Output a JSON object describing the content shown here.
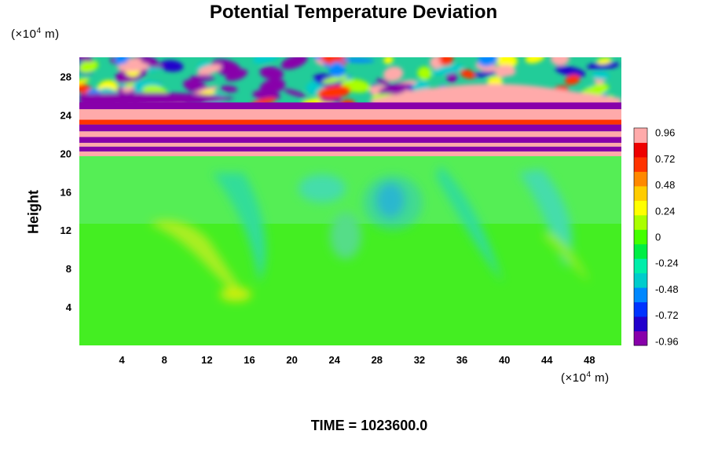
{
  "chart_data": {
    "type": "heatmap",
    "title": "Potential Temperature Deviation",
    "ylabel": "Height",
    "xlabel": "",
    "x_unit": {
      "prefix": "(×10",
      "exp": "4",
      "suffix": " m)"
    },
    "y_unit": {
      "prefix": "(×10",
      "exp": "4",
      "suffix": " m)"
    },
    "xlim": [
      0,
      51
    ],
    "ylim": [
      0,
      30
    ],
    "x_ticks": [
      "4",
      "8",
      "12",
      "16",
      "20",
      "24",
      "28",
      "32",
      "36",
      "40",
      "44",
      "48"
    ],
    "y_ticks": [
      "4",
      "8",
      "12",
      "16",
      "20",
      "24",
      "28"
    ],
    "colorbar": {
      "range": [
        -1.0,
        1.0
      ],
      "ticks": [
        "0.96",
        "0.72",
        "0.48",
        "0.24",
        "0",
        "-0.24",
        "-0.48",
        "-0.72",
        "-0.96"
      ],
      "colors": [
        "#8800aa",
        "#2200cc",
        "#0033ff",
        "#0088ff",
        "#00cccc",
        "#00eeaa",
        "#00ee44",
        "#44ff00",
        "#aaff00",
        "#ffff00",
        "#ffcc00",
        "#ff8800",
        "#ff3300",
        "#ee0000",
        "#ffaaaa"
      ]
    },
    "annotation": "TIME = 1023600.0"
  }
}
